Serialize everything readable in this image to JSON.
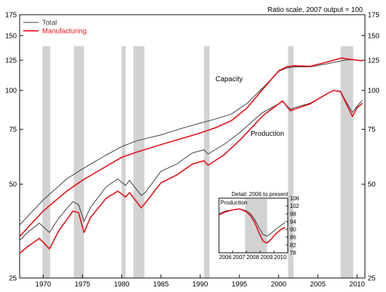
{
  "chart_data": [
    {
      "type": "line",
      "title": "",
      "note": "Ratio scale, 2007 output = 100",
      "xlabel": "",
      "ylabel": "",
      "y_scale": "log",
      "ylim": [
        25,
        175
      ],
      "xlim": [
        1967,
        2011
      ],
      "y_ticks": [
        25,
        50,
        75,
        100,
        125,
        150,
        175
      ],
      "x_ticks": [
        1970,
        1975,
        1980,
        1985,
        1990,
        1995,
        2000,
        2005,
        2010
      ],
      "legend": {
        "placement": "top-left",
        "entries": [
          "Total",
          "Manufacturing"
        ]
      },
      "colors": {
        "total": "#3a3a3a",
        "manufacturing": "#e8141b",
        "recession": "#d2d2d2"
      },
      "annotations": [
        "Capacity",
        "Production"
      ],
      "recessions": [
        [
          1969.9,
          1970.9
        ],
        [
          1973.9,
          1975.2
        ],
        [
          1980.0,
          1980.5
        ],
        [
          1981.5,
          1982.9
        ],
        [
          1990.5,
          1991.2
        ],
        [
          2001.2,
          2001.9
        ],
        [
          2007.9,
          2009.5
        ]
      ],
      "series": [
        {
          "name": "Total",
          "kind": "capacity",
          "x": [
            1967,
            1970,
            1973,
            1975,
            1978,
            1980,
            1982,
            1985,
            1988,
            1990,
            1992,
            1994,
            1996,
            1998,
            2000,
            2001,
            2002,
            2004,
            2006,
            2007,
            2008,
            2009,
            2010,
            2010.7
          ],
          "values": [
            37,
            44.5,
            52,
            56,
            62,
            66,
            69,
            72,
            76,
            78.5,
            81,
            84,
            91,
            102,
            115,
            118,
            119,
            119,
            121.5,
            123,
            124.5,
            125.5,
            125,
            124.5
          ]
        },
        {
          "name": "Manufacturing",
          "kind": "capacity",
          "x": [
            1967,
            1970,
            1973,
            1975,
            1978,
            1980,
            1982,
            1985,
            1988,
            1990,
            1992,
            1994,
            1996,
            1998,
            2000,
            2001,
            2002,
            2004,
            2006,
            2007,
            2008,
            2009,
            2010,
            2010.7
          ],
          "values": [
            34,
            41,
            47.5,
            51.5,
            57,
            61,
            63.5,
            67,
            70.5,
            73,
            76,
            80,
            88,
            101,
            115.5,
            119,
            120,
            119.5,
            123,
            125,
            127,
            126,
            125,
            124.5
          ]
        },
        {
          "name": "Total",
          "kind": "production",
          "x": [
            1967,
            1968,
            1969.5,
            1970.8,
            1972,
            1973.8,
            1974.5,
            1975.2,
            1976,
            1978,
            1979.5,
            1980.5,
            1981,
            1982.5,
            1983,
            1985,
            1987,
            1989,
            1990.5,
            1991,
            1993,
            1995,
            1997,
            1998,
            2000.5,
            2001.5,
            2002,
            2004,
            2006,
            2007,
            2007.9,
            2008.5,
            2009.4,
            2010,
            2010.7
          ],
          "values": [
            33,
            35,
            37.5,
            35,
            39,
            44,
            43,
            38,
            42,
            49,
            52,
            49.5,
            51.5,
            46,
            47,
            55,
            58,
            63,
            64.5,
            62.5,
            67,
            73,
            81,
            85,
            92,
            87,
            88,
            91,
            97,
            100,
            99.5,
            93,
            85,
            89,
            93
          ]
        },
        {
          "name": "Manufacturing",
          "kind": "production",
          "x": [
            1967,
            1968,
            1969.5,
            1970.8,
            1972,
            1973.8,
            1974.5,
            1975.2,
            1976,
            1978,
            1979.5,
            1980.5,
            1981,
            1982.5,
            1983,
            1985,
            1987,
            1989,
            1990.5,
            1991,
            1993,
            1995,
            1997,
            1998,
            2000.5,
            2001.5,
            2002,
            2004,
            2006,
            2007,
            2007.9,
            2008.5,
            2009.4,
            2010,
            2010.7
          ],
          "values": [
            30,
            31.5,
            33.5,
            31,
            35.5,
            41,
            40.5,
            35,
            39,
            45,
            47.5,
            45.5,
            47,
            42,
            43.5,
            50.5,
            53.5,
            58,
            59.5,
            57.5,
            62,
            69,
            78,
            83,
            92.5,
            86,
            87,
            90.5,
            97,
            100,
            99,
            92,
            82.5,
            88,
            91
          ]
        }
      ]
    },
    {
      "type": "line",
      "title": "Detail: 2006 to present",
      "ylabel": "Production",
      "y_scale": "linear",
      "ylim": [
        78,
        106
      ],
      "xlim": [
        2006,
        2011
      ],
      "y_ticks": [
        78,
        82,
        86,
        90,
        94,
        98,
        102,
        106
      ],
      "x_ticks": [
        2006,
        2007,
        2008,
        2009,
        2010
      ],
      "series": [
        {
          "name": "Total",
          "x": [
            2006,
            2006.5,
            2007,
            2007.5,
            2008,
            2008.3,
            2008.6,
            2008.9,
            2009.2,
            2009.5,
            2009.8,
            2010.1,
            2010.5,
            2010.8
          ],
          "values": [
            98,
            99.5,
            100,
            100.5,
            99.5,
            98,
            95,
            91,
            87.5,
            86.5,
            88,
            90,
            92,
            93.5
          ]
        },
        {
          "name": "Manufacturing",
          "x": [
            2006,
            2006.5,
            2007,
            2007.5,
            2008,
            2008.3,
            2008.6,
            2008.9,
            2009.2,
            2009.5,
            2009.8,
            2010.1,
            2010.5,
            2010.8
          ],
          "values": [
            97.5,
            99,
            100,
            100.5,
            99,
            97,
            93.5,
            88.5,
            84,
            83,
            85,
            87.5,
            90,
            91
          ]
        }
      ]
    }
  ]
}
